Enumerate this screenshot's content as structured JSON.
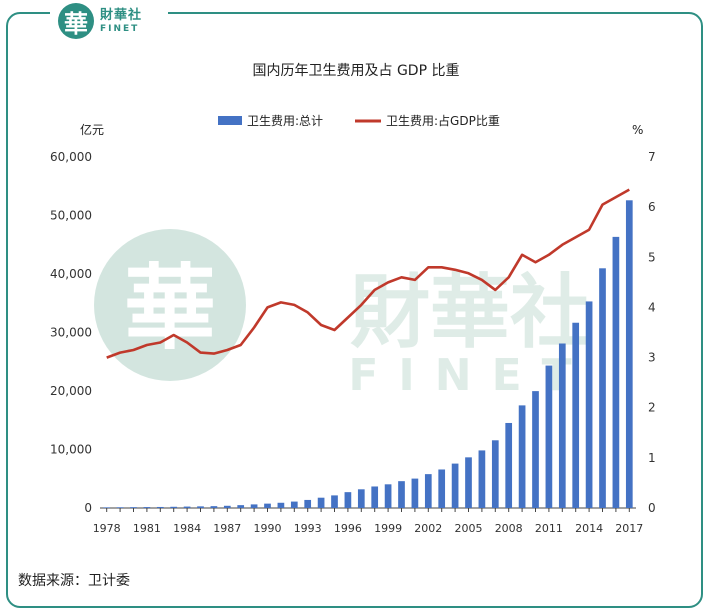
{
  "logo": {
    "mark": "華",
    "name_cn": "財華社",
    "name_en": "FINET"
  },
  "watermark": {
    "mark": "華",
    "name_cn": "財華社",
    "name_en": "FINET"
  },
  "source_text": "数据来源：卫计委",
  "colors": {
    "frame": "#2e8f83",
    "bar": "#4472c4",
    "line": "#c0392b",
    "watermark": "#cfe3dc"
  },
  "chart_data": {
    "type": "bar",
    "title": "国内历年卫生费用及占 GDP 比重",
    "left_unit": "亿元",
    "right_unit": "%",
    "legend_position": "top",
    "grid": false,
    "x": [
      1978,
      1979,
      1980,
      1981,
      1982,
      1983,
      1984,
      1985,
      1986,
      1987,
      1988,
      1989,
      1990,
      1991,
      1992,
      1993,
      1994,
      1995,
      1996,
      1997,
      1998,
      1999,
      2000,
      2001,
      2002,
      2003,
      2004,
      2005,
      2006,
      2007,
      2008,
      2009,
      2010,
      2011,
      2012,
      2013,
      2014,
      2015,
      2016,
      2017
    ],
    "x_tick_labels": [
      "1978",
      "1981",
      "1984",
      "1987",
      "1990",
      "1993",
      "1996",
      "1999",
      "2002",
      "2005",
      "2008",
      "2011",
      "2014",
      "2017"
    ],
    "y_ticks_left": [
      "0",
      "10,000",
      "20,000",
      "30,000",
      "40,000",
      "50,000",
      "60,000"
    ],
    "y_ticks_right": [
      "0",
      "1",
      "2",
      "3",
      "4",
      "5",
      "6",
      "7"
    ],
    "ylim_left": [
      0,
      60000
    ],
    "ylim_right": [
      0,
      7
    ],
    "series": [
      {
        "name": "卫生费用:总计",
        "type": "bar",
        "axis": "left",
        "values": [
          110,
          126,
          143,
          160,
          177,
          207,
          242,
          279,
          316,
          379,
          488,
          615,
          747,
          893,
          1097,
          1378,
          1761,
          2155,
          2709,
          3197,
          3679,
          4048,
          4587,
          5026,
          5790,
          6584,
          7590,
          8660,
          9843,
          11574,
          14535,
          17542,
          19980,
          24346,
          28119,
          31669,
          35312,
          40975,
          46345,
          52598
        ]
      },
      {
        "name": "卫生费用:占GDP比重",
        "type": "line",
        "axis": "right",
        "values": [
          3.0,
          3.1,
          3.15,
          3.25,
          3.3,
          3.45,
          3.3,
          3.1,
          3.08,
          3.15,
          3.25,
          3.6,
          4.0,
          4.1,
          4.05,
          3.9,
          3.65,
          3.55,
          3.8,
          4.05,
          4.35,
          4.5,
          4.6,
          4.55,
          4.8,
          4.8,
          4.75,
          4.68,
          4.55,
          4.35,
          4.6,
          5.05,
          4.9,
          5.05,
          5.25,
          5.4,
          5.55,
          6.05,
          6.2,
          6.35
        ]
      }
    ]
  }
}
